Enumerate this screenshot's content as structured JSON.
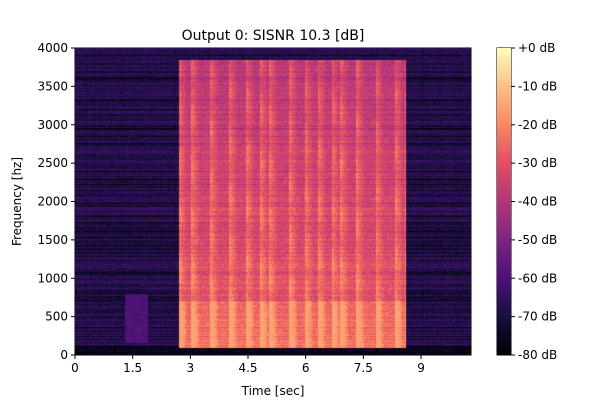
{
  "chart_data": {
    "type": "heatmap",
    "title": "Output 0: SISNR 10.3 [dB]",
    "xlabel": "Time [sec]",
    "ylabel": "Frequency [hz]",
    "xlim": [
      0,
      10.3
    ],
    "ylim": [
      0,
      4000
    ],
    "x_ticks": [
      0,
      1.5,
      3,
      4.5,
      6,
      7.5,
      9
    ],
    "x_tick_labels": [
      "0",
      "1.5",
      "3",
      "4.5",
      "6",
      "7.5",
      "9"
    ],
    "y_ticks": [
      0,
      500,
      1000,
      1500,
      2000,
      2500,
      3000,
      3500,
      4000
    ],
    "y_tick_labels": [
      "0",
      "500",
      "1000",
      "1500",
      "2000",
      "2500",
      "3000",
      "3500",
      "4000"
    ],
    "colormap": "magma",
    "colorbar": {
      "range": [
        -80,
        0
      ],
      "ticks": [
        0,
        -10,
        -20,
        -30,
        -40,
        -50,
        -60,
        -70,
        -80
      ],
      "tick_labels": [
        "+0 dB",
        "-10 dB",
        "-20 dB",
        "-30 dB",
        "-40 dB",
        "-50 dB",
        "-60 dB",
        "-70 dB",
        "-80 dB"
      ]
    },
    "speech_region": {
      "start": 2.7,
      "end": 8.6,
      "max_freq": 3850
    },
    "background_level_db": -68,
    "speech_level_db": -35,
    "peak_level_db": -15,
    "grid": false
  }
}
